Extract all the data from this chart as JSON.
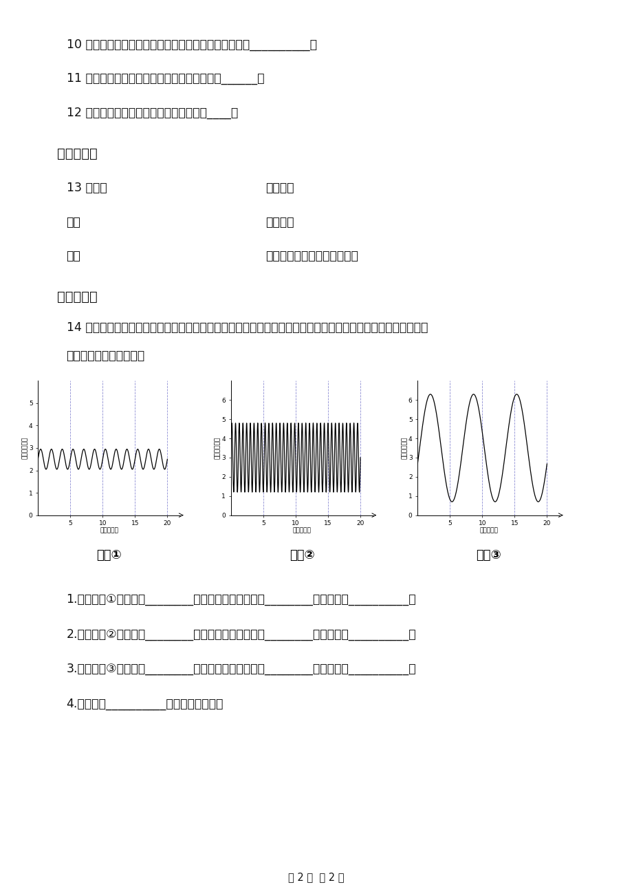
{
  "bg_color": "#ffffff",
  "q10": "10 。牙槽脓肿会使牙髓坏死，所以要讲究口腔卫生。（__________）",
  "q11": "11 。相同年龄的男、女同学肺活量一样大。（______）",
  "q12": "12 。餐后半小时内不宜进行剧烈运动。（____）",
  "s4_title": "四、连线题",
  "s4_13": "13 。牙齿",
  "s4_left2": "舌头",
  "s4_left3": "唠液",
  "s4_right1": "搅拌作用",
  "s4_right2": "和碎食物",
  "s4_right3": "湿润食物，消化食物中的淠粉",
  "s5_title": "五、综合题",
  "q14_line1": "14 。下面三幅曲线图表示人在睡眠、长跑、潜水游泳三种状态下的呼吸状态。（注意：呼吸频率用快或慢表示，",
  "q14_line2": "呼吸深度用深或浅表示）",
  "c1_label": "曲线①",
  "c2_label": "曲线②",
  "c3_label": "曲线③",
  "sq1": "1.　　曲线①表示的是________状态，此时呼吸频率是________，呼吸深度__________。",
  "sq2": "2.　　曲线②表示的是________状态，此时呼吸频率是________，呼吸深度__________。",
  "sq3": "3.　　曲线③表示的是________状态，此时呼吸频率是________，呼吸深度__________。",
  "sq4": "4.　　曲线__________消耗的氧气最多。",
  "footer": "第 2 页  共 2 页"
}
